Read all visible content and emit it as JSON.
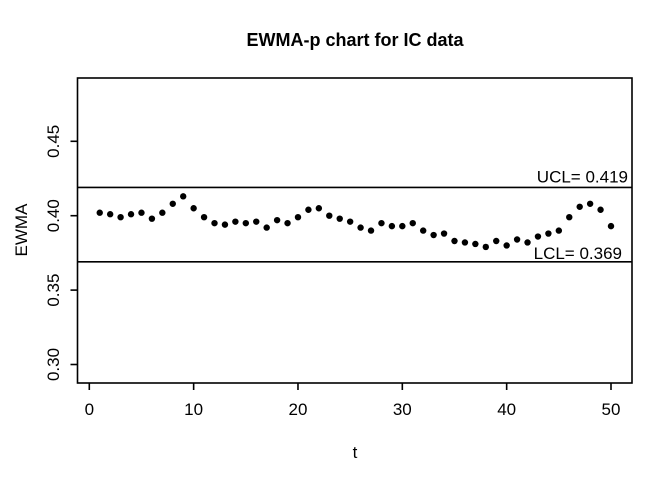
{
  "chart_data": {
    "type": "scatter",
    "title": "EWMA-p chart for IC data",
    "xlabel": "t",
    "ylabel": "EWMA",
    "x_tick_values": [
      0,
      10,
      20,
      30,
      40,
      50
    ],
    "x_tick_labels": [
      "0",
      "10",
      "20",
      "30",
      "40",
      "50"
    ],
    "y_tick_values": [
      0.3,
      0.35,
      0.4,
      0.45
    ],
    "y_tick_labels": [
      "0.30",
      "0.35",
      "0.40",
      "0.45"
    ],
    "xlim": [
      0,
      52
    ],
    "ylim": [
      0.287,
      0.492
    ],
    "grid": "off",
    "marker_color": "#000000",
    "axis_color": "#000000",
    "background_color": "#ffffff",
    "control_limits": {
      "ucl": {
        "value": 0.419,
        "label": "UCL= 0.419"
      },
      "lcl": {
        "value": 0.369,
        "label": "LCL= 0.369"
      }
    },
    "series": [
      {
        "name": "EWMA",
        "marker": "filled-circle",
        "x": [
          1,
          2,
          3,
          4,
          5,
          6,
          7,
          8,
          9,
          10,
          11,
          12,
          13,
          14,
          15,
          16,
          17,
          18,
          19,
          20,
          21,
          22,
          23,
          24,
          25,
          26,
          27,
          28,
          29,
          30,
          31,
          32,
          33,
          34,
          35,
          36,
          37,
          38,
          39,
          40,
          41,
          42,
          43,
          44,
          45,
          46,
          47,
          48,
          49,
          50
        ],
        "y": [
          0.402,
          0.401,
          0.399,
          0.401,
          0.402,
          0.398,
          0.402,
          0.408,
          0.413,
          0.405,
          0.399,
          0.395,
          0.394,
          0.396,
          0.395,
          0.396,
          0.392,
          0.397,
          0.395,
          0.399,
          0.404,
          0.405,
          0.4,
          0.398,
          0.396,
          0.392,
          0.39,
          0.395,
          0.393,
          0.393,
          0.395,
          0.39,
          0.387,
          0.388,
          0.383,
          0.382,
          0.381,
          0.379,
          0.383,
          0.38,
          0.384,
          0.382,
          0.386,
          0.388,
          0.39,
          0.399,
          0.406,
          0.408,
          0.404,
          0.393
        ]
      }
    ]
  }
}
